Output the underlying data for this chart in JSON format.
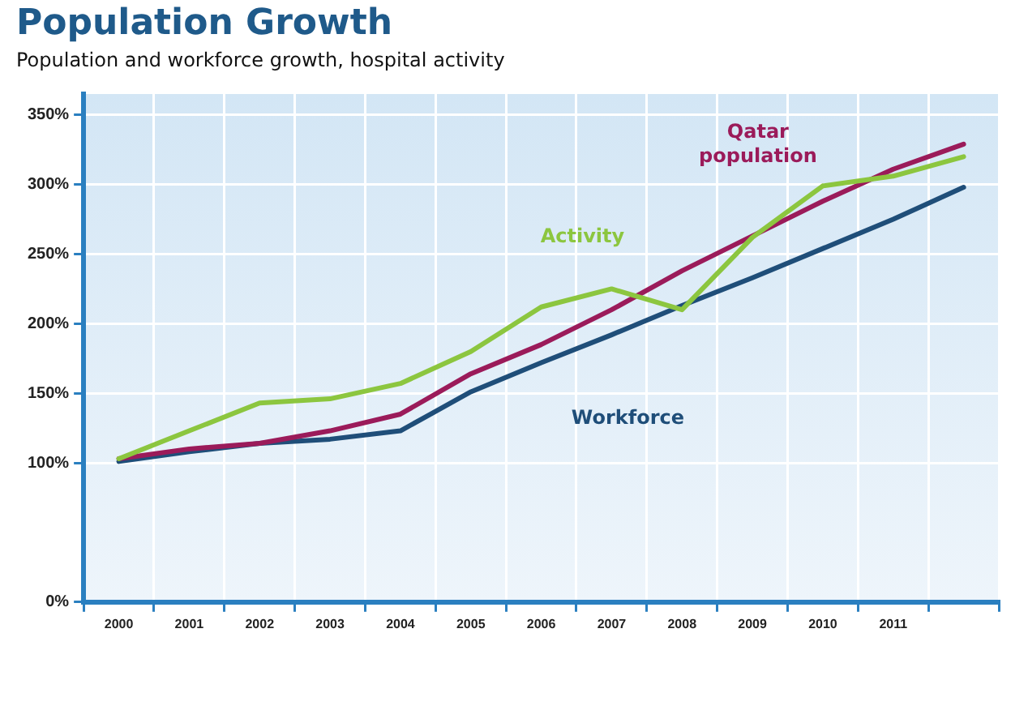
{
  "chart_data": {
    "type": "line",
    "title": "Population Growth",
    "subtitle": "Population and workforce growth, hospital activity",
    "categories": [
      "2000",
      "2001",
      "2002",
      "2003",
      "2004",
      "2005",
      "2006",
      "2007",
      "2008",
      "2009",
      "2010",
      "2011",
      null
    ],
    "series": [
      {
        "name": "Activity",
        "color": "#8cc63f",
        "values": [
          103,
          123,
          143,
          146,
          157,
          180,
          212,
          225,
          210,
          262,
          299,
          306,
          320
        ]
      },
      {
        "name": "Qatar population",
        "color": "#9b1b5a",
        "values": [
          103,
          110,
          114,
          123,
          135,
          164,
          185,
          210,
          238,
          263,
          288,
          311,
          329
        ]
      },
      {
        "name": "Workforce",
        "color": "#1f4e79",
        "values": [
          101,
          108,
          114,
          117,
          123,
          151,
          172,
          192,
          213,
          233,
          254,
          275,
          298
        ]
      }
    ],
    "ylim": [
      0,
      365
    ],
    "yticks": [
      {
        "value": 0,
        "label": "0%"
      },
      {
        "value": 100,
        "label": "100%"
      },
      {
        "value": 150,
        "label": "150%"
      },
      {
        "value": 200,
        "label": "200%"
      },
      {
        "value": 250,
        "label": "250%"
      },
      {
        "value": 300,
        "label": "300%"
      },
      {
        "value": 350,
        "label": "350%"
      }
    ],
    "grid": true,
    "legend": false,
    "marker": "none",
    "line_style": "solid"
  }
}
